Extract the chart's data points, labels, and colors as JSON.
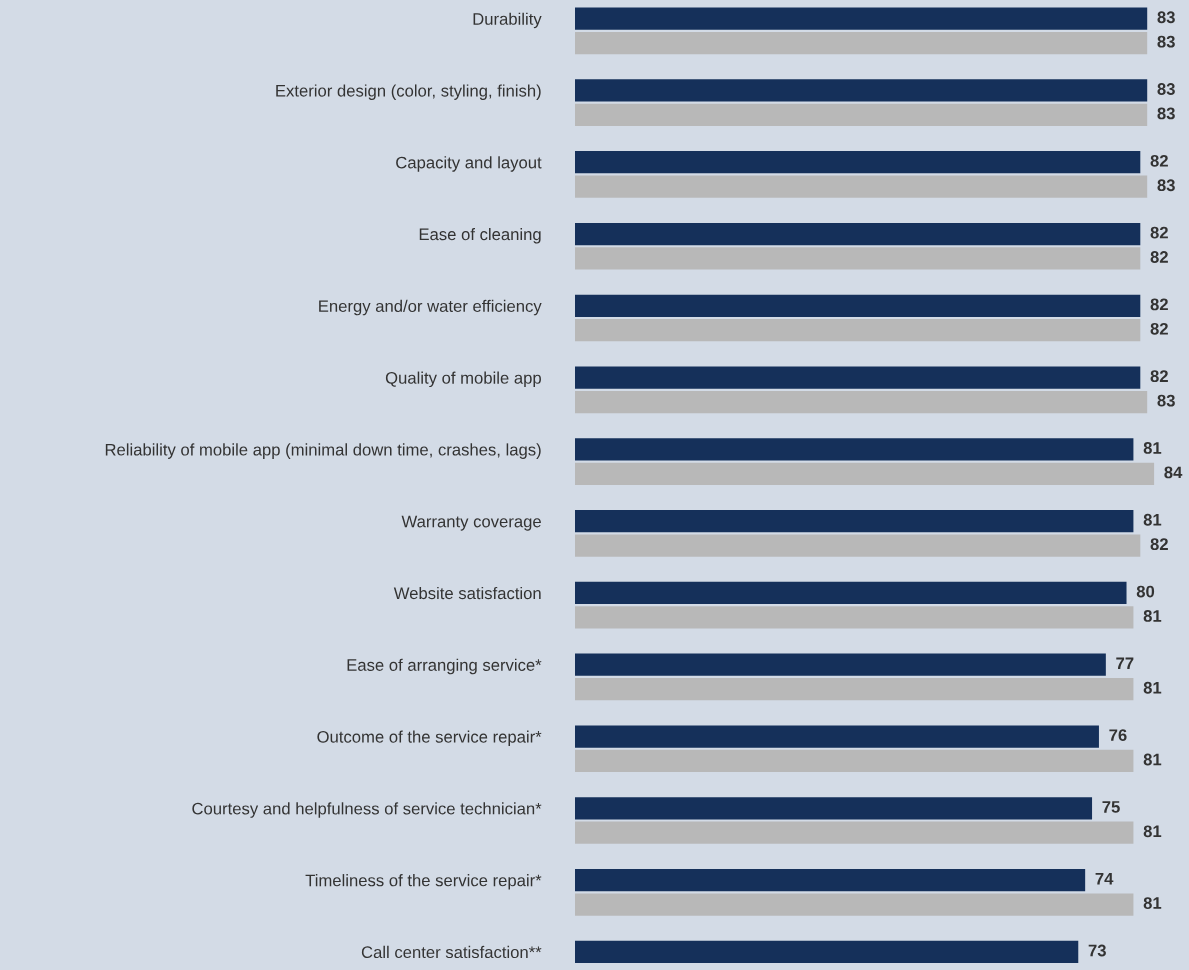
{
  "chart_data": {
    "type": "bar",
    "orientation": "horizontal",
    "categories": [
      "Durability",
      "Exterior design (color, styling, finish)",
      "Capacity and layout",
      "Ease of cleaning",
      "Energy and/or water efficiency",
      "Quality of mobile app",
      "Reliability of mobile app (minimal down time, crashes, lags)",
      "Warranty coverage",
      "Website satisfaction",
      "Ease of arranging service*",
      "Outcome of the service repair*",
      "Courtesy and helpfulness of service technician*",
      "Timeliness of the service repair*",
      "Call center satisfaction**"
    ],
    "series": [
      {
        "color": "#15305a",
        "values": [
          83,
          83,
          82,
          82,
          82,
          82,
          81,
          81,
          80,
          77,
          76,
          75,
          74,
          73
        ]
      },
      {
        "color": "#b8b8b8",
        "values": [
          83,
          83,
          83,
          82,
          82,
          83,
          84,
          82,
          81,
          81,
          81,
          81,
          81,
          null
        ]
      }
    ],
    "tick_labels": "y",
    "data_labels": true,
    "grid": false,
    "legend": false
  }
}
